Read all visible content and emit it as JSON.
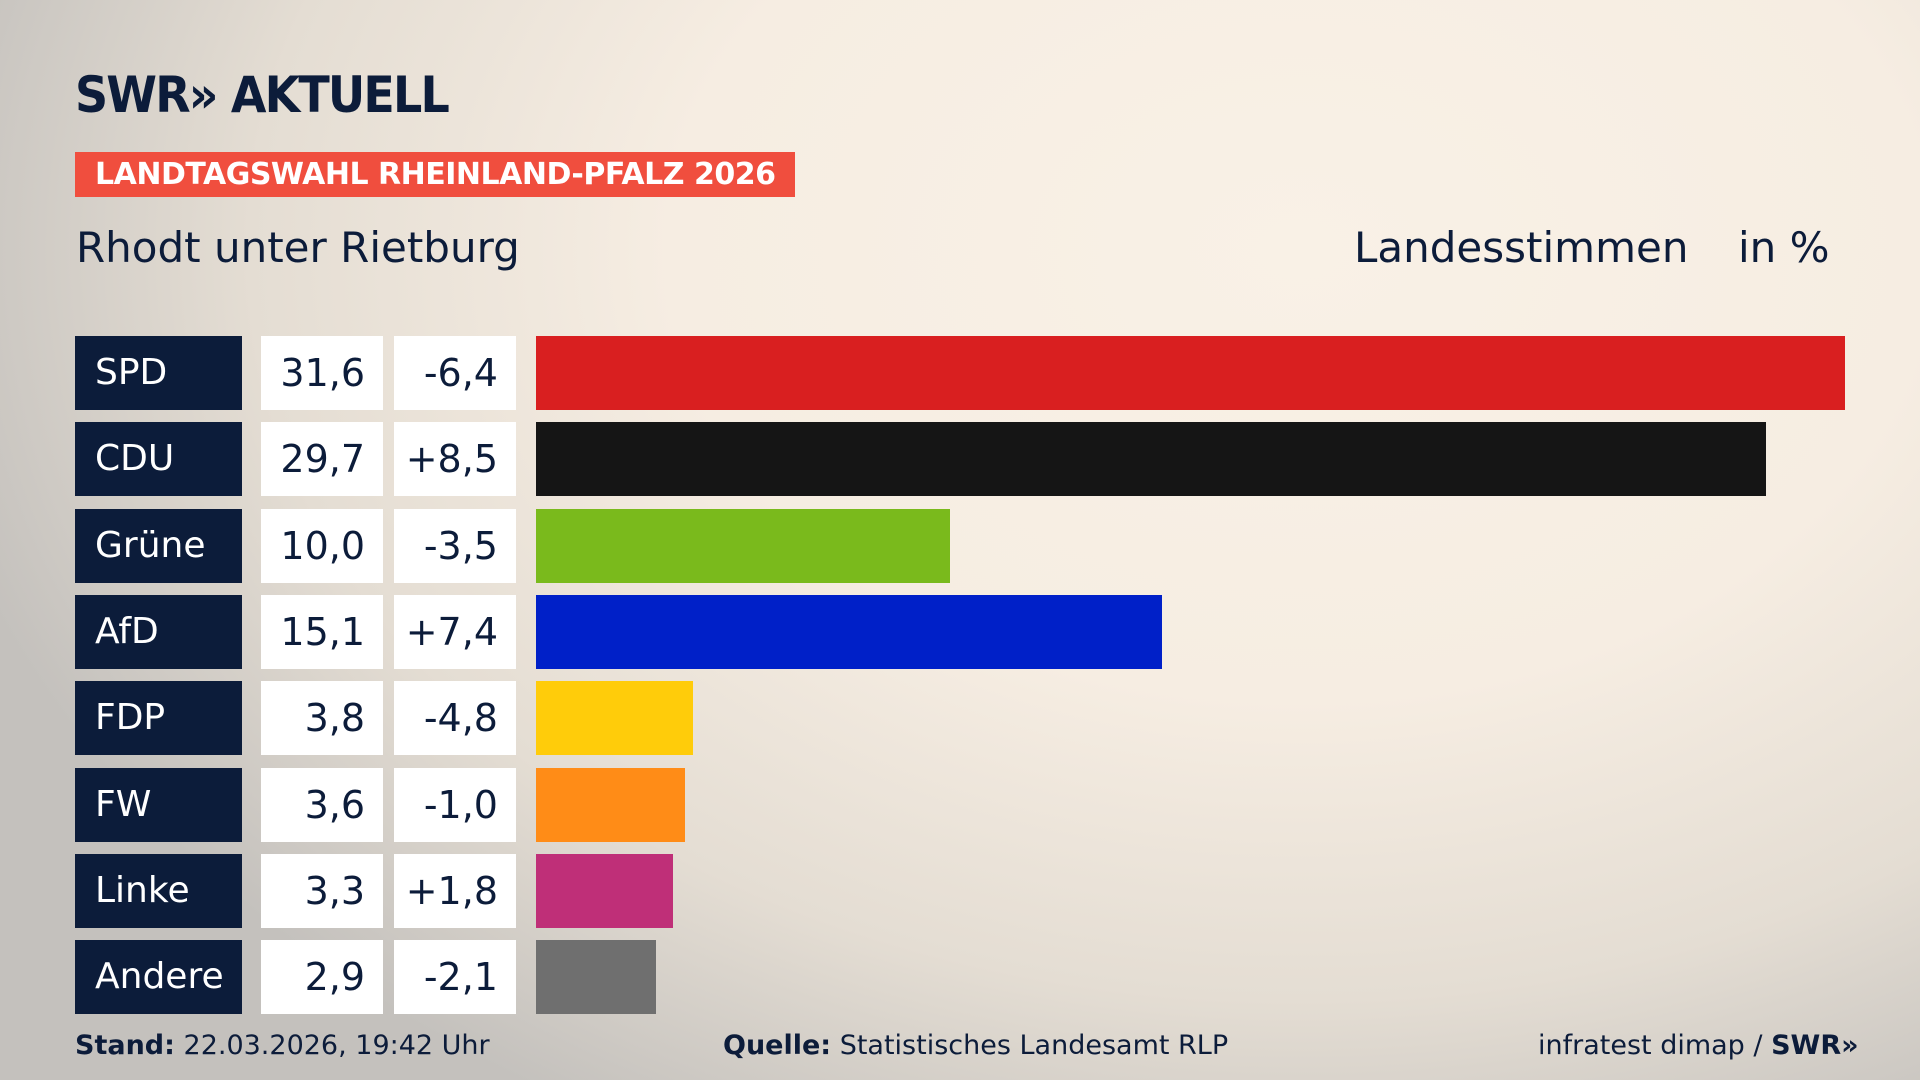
{
  "header": {
    "logo": "SWR» AKTUELL",
    "banner": "LANDTAGSWAHL RHEINLAND-PFALZ 2026",
    "location": "Rhodt unter Rietburg",
    "label": "Landesstimmen",
    "unit": "in %"
  },
  "colors": {
    "banner": "#f04e3e",
    "navy": "#0c1c3a"
  },
  "chart_data": {
    "type": "bar",
    "orientation": "horizontal",
    "title": "Landesstimmen",
    "unit": "in %",
    "categories": [
      "SPD",
      "CDU",
      "Grüne",
      "AfD",
      "FDP",
      "FW",
      "Linke",
      "Andere"
    ],
    "values": [
      31.6,
      29.7,
      10.0,
      15.1,
      3.8,
      3.6,
      3.3,
      2.9
    ],
    "value_labels": [
      "31,6",
      "29,7",
      "10,0",
      "15,1",
      "3,8",
      "3,6",
      "3,3",
      "2,9"
    ],
    "diffs": [
      -6.4,
      8.5,
      -3.5,
      7.4,
      -4.8,
      -1.0,
      1.8,
      -2.1
    ],
    "diff_labels": [
      "-6,4",
      "+8,5",
      "-3,5",
      "+7,4",
      "-4,8",
      "-1,0",
      "+1,8",
      "-2,1"
    ],
    "colors": [
      "#d91f20",
      "#151515",
      "#7aba1c",
      "#0020c8",
      "#ffcc0a",
      "#ff8c17",
      "#bf2f78",
      "#6f6f6f"
    ],
    "grid": false,
    "legend": "none"
  },
  "footer": {
    "stand_label": "Stand:",
    "stand_value": "22.03.2026, 19:42 Uhr",
    "quelle_label": "Quelle:",
    "quelle_value": "Statistisches Landesamt RLP",
    "credit": "infratest dimap / ",
    "credit_logo": "SWR»"
  }
}
